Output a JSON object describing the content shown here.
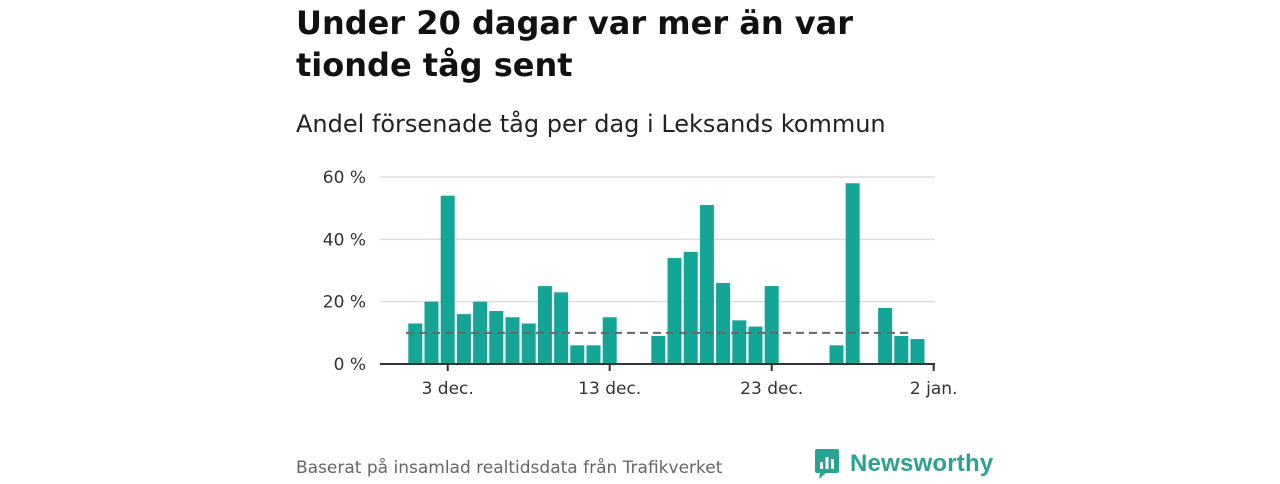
{
  "title": "Under 20 dagar var mer än var tionde tåg sent",
  "subtitle": "Andel försenade tåg per dag i Leksands kommun",
  "source_note": "Baserat på insamlad realtidsdata från Trafikverket",
  "brand": {
    "name": "Newsworthy",
    "color": "#2aa191"
  },
  "chart_data": {
    "type": "bar",
    "bar_color": "#14a597",
    "reference_line": {
      "value": 10,
      "style": "dashed",
      "color": "#666666"
    },
    "ylim": [
      0,
      60
    ],
    "y_ticks": [
      {
        "value": 0,
        "label": "0 %"
      },
      {
        "value": 20,
        "label": "20 %"
      },
      {
        "value": 40,
        "label": "40 %"
      },
      {
        "value": 60,
        "label": "60 %"
      }
    ],
    "x_ticks": [
      {
        "day": 3,
        "label": "3 dec."
      },
      {
        "day": 13,
        "label": "13 dec."
      },
      {
        "day": 23,
        "label": "23 dec."
      },
      {
        "day": 33,
        "label": "2 jan."
      }
    ],
    "grid": true,
    "legend": "none",
    "bars": [
      {
        "day": 1,
        "value": 13
      },
      {
        "day": 2,
        "value": 20
      },
      {
        "day": 3,
        "value": 54
      },
      {
        "day": 4,
        "value": 16
      },
      {
        "day": 5,
        "value": 20
      },
      {
        "day": 6,
        "value": 17
      },
      {
        "day": 7,
        "value": 15
      },
      {
        "day": 8,
        "value": 13
      },
      {
        "day": 9,
        "value": 25
      },
      {
        "day": 10,
        "value": 23
      },
      {
        "day": 11,
        "value": 6
      },
      {
        "day": 12,
        "value": 6
      },
      {
        "day": 13,
        "value": 15
      },
      {
        "day": 16,
        "value": 9
      },
      {
        "day": 17,
        "value": 34
      },
      {
        "day": 18,
        "value": 36
      },
      {
        "day": 19,
        "value": 51
      },
      {
        "day": 20,
        "value": 26
      },
      {
        "day": 21,
        "value": 14
      },
      {
        "day": 22,
        "value": 12
      },
      {
        "day": 23,
        "value": 25
      },
      {
        "day": 27,
        "value": 6
      },
      {
        "day": 28,
        "value": 58
      },
      {
        "day": 30,
        "value": 18
      },
      {
        "day": 31,
        "value": 9
      },
      {
        "day": 32,
        "value": 8
      }
    ]
  }
}
